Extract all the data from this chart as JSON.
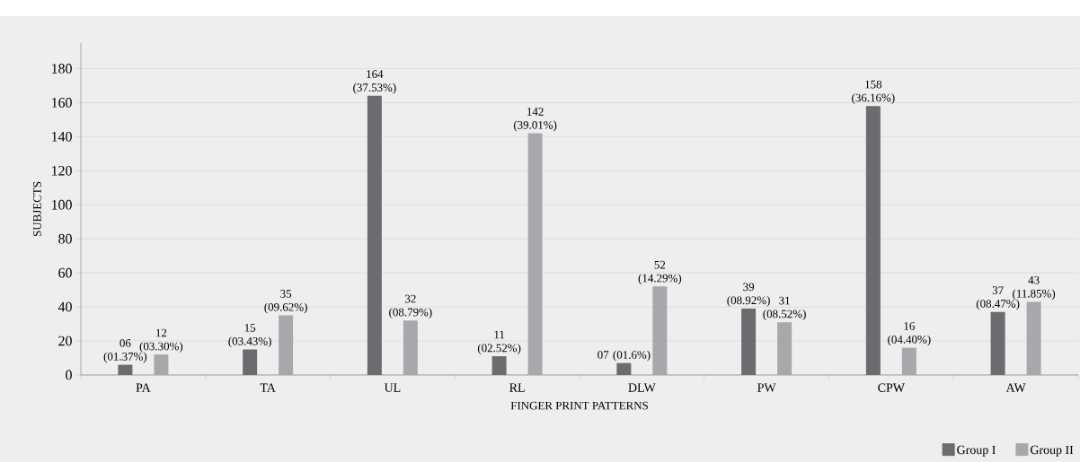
{
  "chart_data": {
    "type": "bar",
    "xlabel": "FINGER PRINT PATTERNS",
    "ylabel": "SUBJECTS",
    "categories": [
      "PA",
      "TA",
      "UL",
      "RL",
      "DLW",
      "PW",
      "CPW",
      "AW"
    ],
    "series": [
      {
        "name": "Group I",
        "color": "#6b6c70",
        "values": [
          6,
          15,
          164,
          11,
          7,
          39,
          158,
          37
        ],
        "value_labels": [
          "06 (01.37%)",
          "15 (03.43%)",
          "164 (37.53%)",
          "11 (02.52%)",
          "07 (01.6%)",
          "39 (08.92%)",
          "158 (36.16%)",
          "37 (08.47%)"
        ]
      },
      {
        "name": "Group II",
        "color": "#a7a8ab",
        "values": [
          12,
          35,
          32,
          142,
          52,
          31,
          16,
          43
        ],
        "value_labels": [
          "12 (03.30%)",
          "35 (09.62%)",
          "32 (08.79%)",
          "142 (39.01%)",
          "52 (14.29%)",
          "31 (08.52%)",
          "16 (04.40%)",
          "43 (11.85%)"
        ]
      }
    ],
    "ylim": [
      0,
      195
    ],
    "yticks": [
      0,
      20,
      40,
      60,
      80,
      100,
      120,
      140,
      160,
      180
    ],
    "grid": "y",
    "legend": "bottom right"
  }
}
